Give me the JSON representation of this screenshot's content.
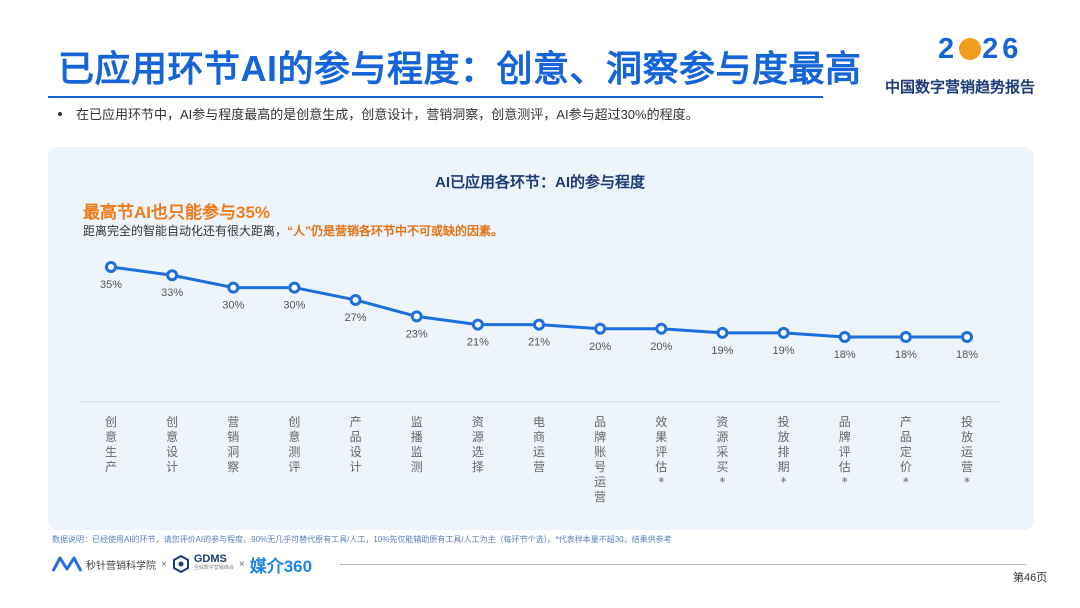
{
  "title": "已应用环节AI的参与程度：创意、洞察参与度最高",
  "brand": {
    "year_a": "2",
    "year_b": "26",
    "subtitle": "中国数字营销趋势报告"
  },
  "bullet": "在已应用环节中，AI参与程度最高的是创意生成，创意设计，营销洞察，创意测评，AI参与超过30%的程度。",
  "callout": {
    "headline": "最高节AI也只能参与35%",
    "text_plain": "距离完全的智能自动化还有很大距离，",
    "text_highlight": "“人”仍是营销各环节中不可或缺的因素。"
  },
  "footnote": "数据说明：已经使用AI的环节，请您评价AI的参与程度。90%无几乎可替代原有工具/人工，10%先仅能辅助原有工具/人工为主（每环节个选）。*代表样本量不超30，结果供参考",
  "footer": {
    "org1": "秒针营销科学院",
    "sep": "×",
    "org2": "GDMS",
    "org2_sub": "全域数字营销峰会",
    "org3": "媒介360"
  },
  "page_number": "第46页",
  "colors": {
    "accent": "#1565d8",
    "line": "#1e6fde",
    "highlight": "#f07c18",
    "panel": "#eef4fb"
  },
  "chart_data": {
    "type": "line",
    "title": "AI已应用各环节：AI的参与程度",
    "categories": [
      "创意生产",
      "创意设计",
      "营销洞察",
      "创意测评",
      "产品设计",
      "监播监测",
      "资源选择",
      "电商运营",
      "品牌账号运营",
      "效果评估*",
      "资源采买*",
      "投放排期*",
      "品牌评估*",
      "产品定价*",
      "投放运营*"
    ],
    "values": [
      35,
      33,
      30,
      30,
      27,
      23,
      21,
      21,
      20,
      20,
      19,
      19,
      18,
      18,
      18
    ],
    "value_labels": [
      "35%",
      "33%",
      "30%",
      "30%",
      "27%",
      "23%",
      "21%",
      "21%",
      "20%",
      "20%",
      "19%",
      "19%",
      "18%",
      "18%",
      "18%"
    ],
    "grid": false,
    "legend": "none"
  }
}
